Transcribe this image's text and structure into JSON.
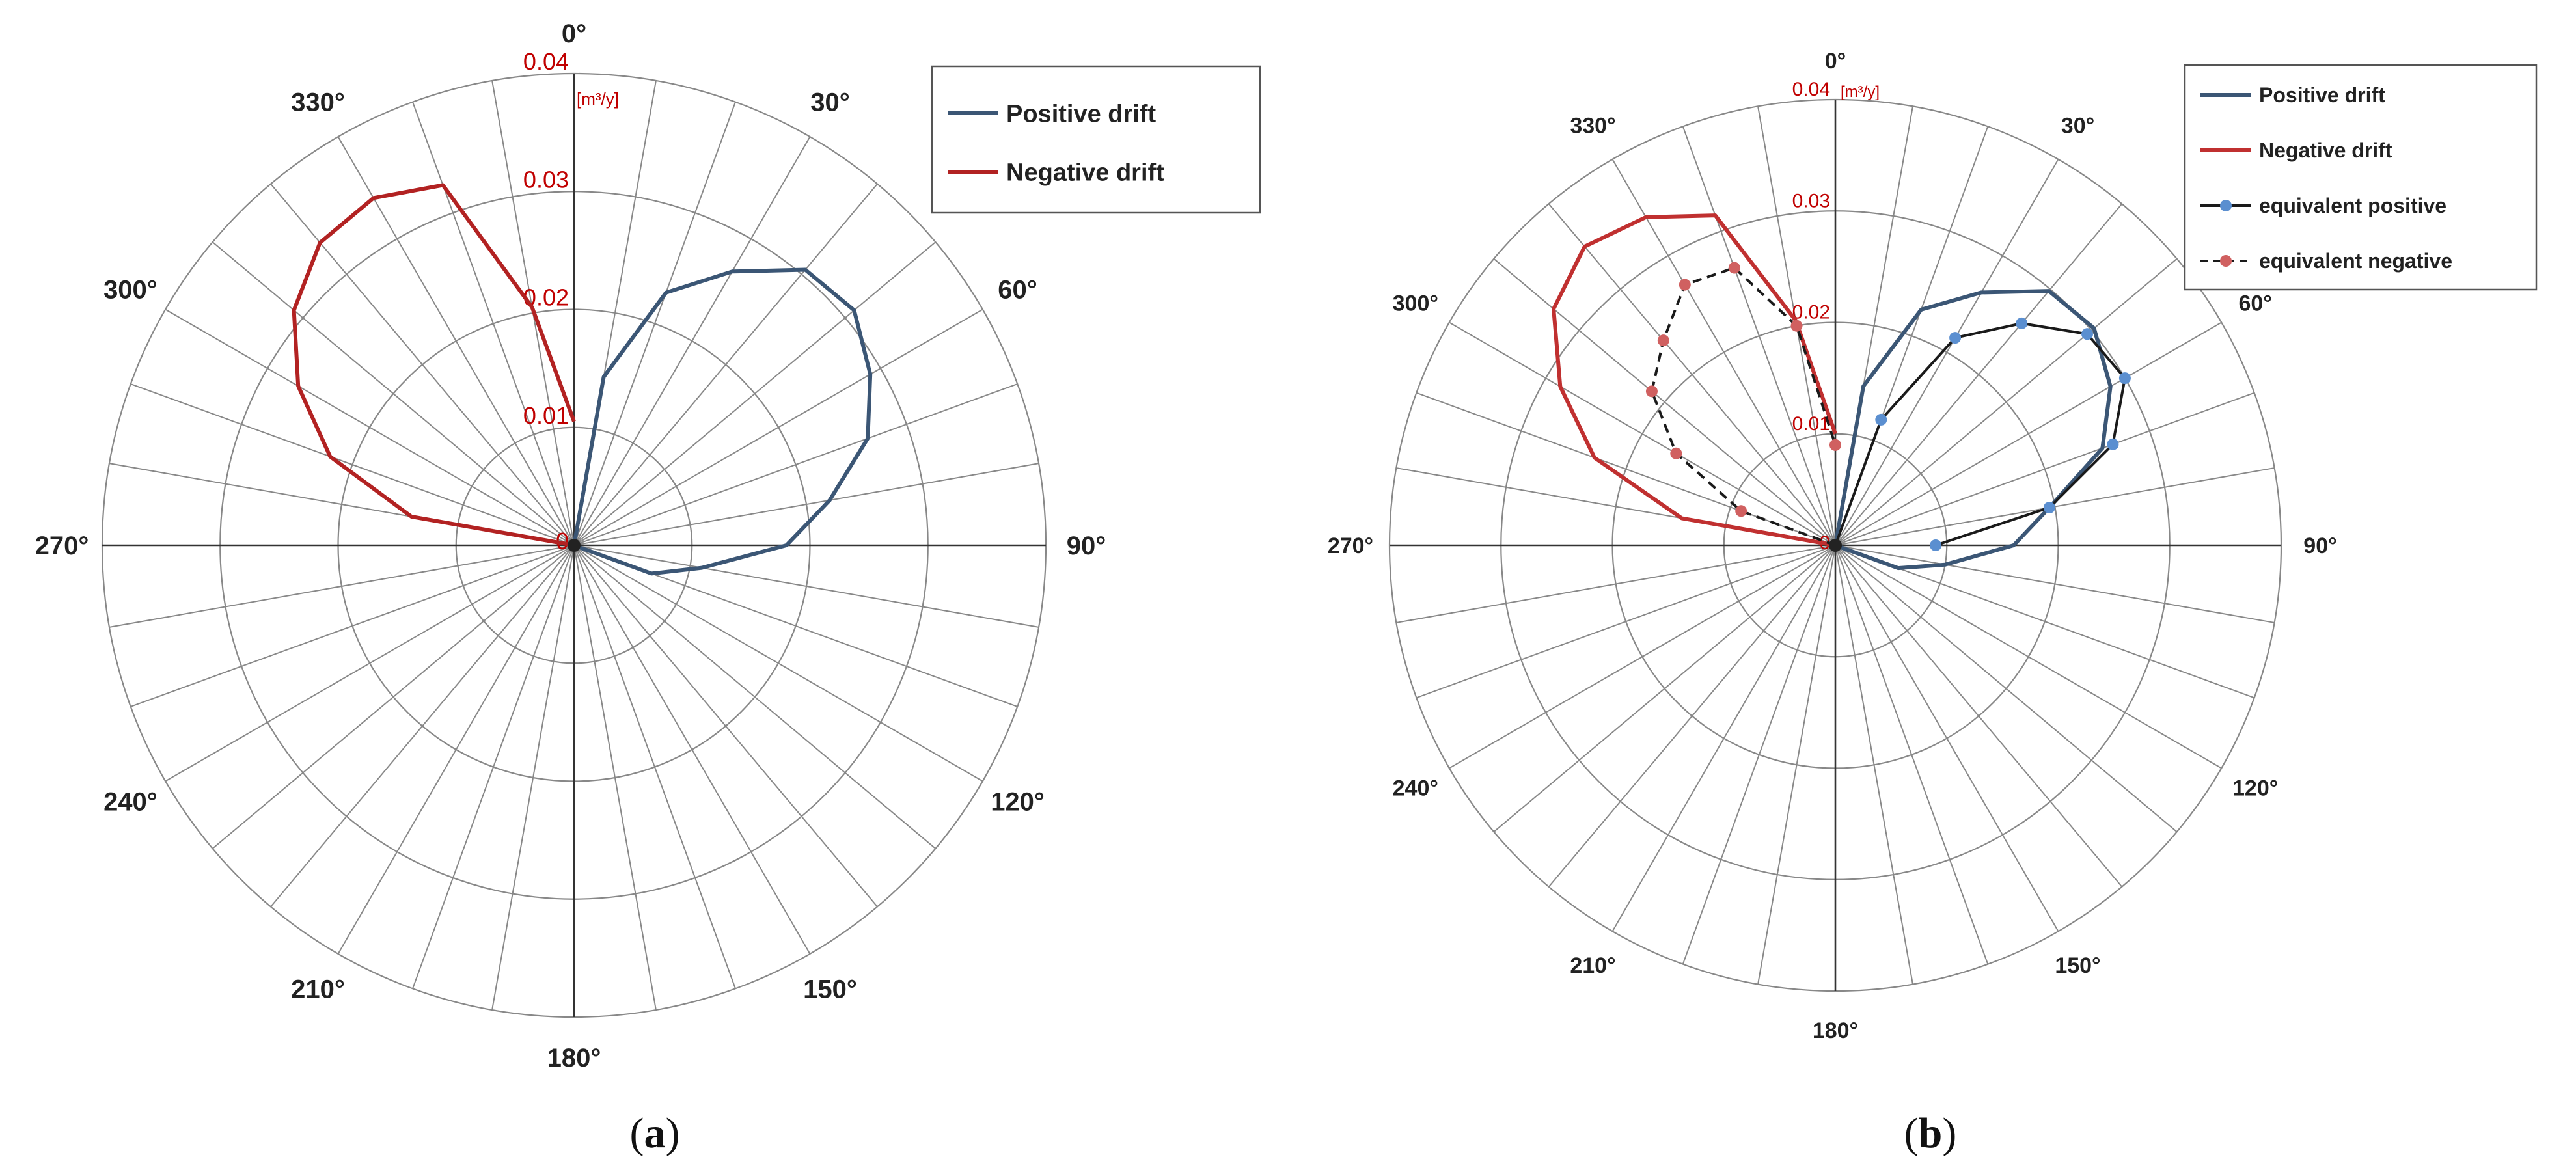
{
  "chart_data": [
    {
      "type": "polar-line",
      "panel": "a",
      "caption_letter": "a",
      "angle_labels": [
        "0°",
        "30°",
        "60°",
        "90°",
        "120°",
        "150°",
        "180°",
        "210°",
        "240°",
        "270°",
        "300°",
        "330°"
      ],
      "radial_ticks": [
        0,
        0.01,
        0.02,
        0.03,
        0.04
      ],
      "radial_tick_labels": [
        "0",
        "0.01",
        "0.02",
        "0.03",
        "0.04"
      ],
      "radial_unit": "[m³/y]",
      "rmax": 0.04,
      "angle_step": 10,
      "grid": true,
      "legend_position": "top-right",
      "colors": {
        "grid": "#888888",
        "positive": "#3b5675",
        "negative": "#b22222"
      },
      "series": [
        {
          "name": "Positive drift",
          "color": "#3b5675",
          "style": "solid",
          "markers": false,
          "angles": [
            0,
            10,
            20,
            30,
            40,
            50,
            60,
            70,
            80,
            90,
            100,
            110,
            120
          ],
          "values": [
            0,
            0.0145,
            0.0228,
            0.0268,
            0.0305,
            0.031,
            0.029,
            0.0265,
            0.022,
            0.018,
            0.011,
            0.007,
            0
          ]
        },
        {
          "name": "Negative drift",
          "color": "#b22222",
          "style": "solid",
          "markers": false,
          "angles": [
            270,
            280,
            290,
            300,
            310,
            320,
            330,
            340,
            350,
            360
          ],
          "values": [
            0,
            0.014,
            0.022,
            0.027,
            0.031,
            0.0335,
            0.034,
            0.0325,
            0.0205,
            0.0105
          ]
        }
      ]
    },
    {
      "type": "polar-line",
      "panel": "b",
      "caption_letter": "b",
      "angle_labels": [
        "0°",
        "30°",
        "60°",
        "90°",
        "120°",
        "150°",
        "180°",
        "210°",
        "240°",
        "270°",
        "300°",
        "330°"
      ],
      "radial_ticks": [
        0,
        0.01,
        0.02,
        0.03,
        0.04
      ],
      "radial_tick_labels": [
        "0",
        "0.01",
        "0.02",
        "0.03",
        "0.04"
      ],
      "radial_unit": "[m³/y]",
      "rmax": 0.04,
      "angle_step": 10,
      "grid": true,
      "legend_position": "top-right",
      "colors": {
        "grid": "#888888",
        "positive": "#3b5675",
        "negative": "#c03030",
        "equiv_positive_marker": "#5b8fd0",
        "equiv_negative_marker": "#d06060"
      },
      "series": [
        {
          "name": "Positive drift",
          "color": "#3b5675",
          "style": "solid",
          "markers": false,
          "angles": [
            0,
            10,
            20,
            30,
            40,
            50,
            60,
            70,
            80,
            90,
            100,
            110,
            120
          ],
          "values": [
            0,
            0.0145,
            0.0225,
            0.0262,
            0.0298,
            0.0303,
            0.0285,
            0.0255,
            0.0195,
            0.016,
            0.01,
            0.006,
            0
          ]
        },
        {
          "name": "Negative drift",
          "color": "#c03030",
          "style": "solid",
          "markers": false,
          "angles": [
            270,
            280,
            290,
            300,
            310,
            320,
            330,
            340,
            350,
            360
          ],
          "values": [
            0,
            0.014,
            0.023,
            0.0285,
            0.033,
            0.035,
            0.034,
            0.0315,
            0.0205,
            0.01
          ]
        },
        {
          "name": "equivalent positive",
          "color": "#1a1a1a",
          "style": "solid",
          "markers": true,
          "marker_color": "#5b8fd0",
          "angles": [
            0,
            20,
            30,
            40,
            50,
            60,
            70,
            80,
            90
          ],
          "values": [
            0,
            0.012,
            0.0215,
            0.026,
            0.0295,
            0.03,
            0.0265,
            0.0195,
            0.009
          ]
        },
        {
          "name": "equivalent negative",
          "color": "#1a1a1a",
          "style": "dashed",
          "markers": true,
          "marker_color": "#d06060",
          "angles": [
            270,
            290,
            300,
            310,
            320,
            330,
            340,
            350,
            360
          ],
          "values": [
            0,
            0.009,
            0.0165,
            0.0215,
            0.024,
            0.027,
            0.0265,
            0.02,
            0.009
          ]
        }
      ]
    }
  ]
}
